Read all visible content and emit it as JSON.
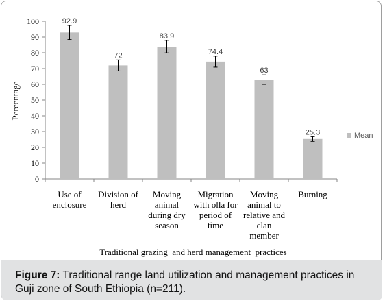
{
  "chart_data": {
    "type": "bar",
    "categories": [
      [
        "Use of",
        "enclosure"
      ],
      [
        "Division of",
        "herd"
      ],
      [
        "Moving",
        "animal",
        "during dry",
        "season"
      ],
      [
        "Migration",
        "with olla for",
        "period of",
        "time"
      ],
      [
        "Moving",
        "animal to",
        "relative and",
        "clan",
        "member"
      ],
      [
        "Burning"
      ]
    ],
    "series": [
      {
        "name": "Mean",
        "values": [
          92.9,
          72,
          83.9,
          74.4,
          63,
          25.3
        ],
        "value_labels": [
          "92.9",
          "72",
          "83.9",
          "74.4",
          "63",
          "25.3"
        ],
        "error": [
          4.5,
          3.5,
          4.0,
          3.5,
          3.0,
          1.5
        ]
      }
    ],
    "title": "",
    "xlabel": "Traditional grazing  and herd management  practices",
    "ylabel": "Percentage",
    "ylim": [
      0,
      100
    ],
    "yticks": [
      0,
      10,
      20,
      30,
      40,
      50,
      60,
      70,
      80,
      90,
      100
    ],
    "grid": false,
    "legend_position": "right",
    "bar_color": "#bfbfbf",
    "error_color": "#000000"
  },
  "caption": {
    "label": "Figure 7:",
    "text": " Traditional range land utilization and management practices in Guji zone of South Ethiopia (n=211)."
  }
}
